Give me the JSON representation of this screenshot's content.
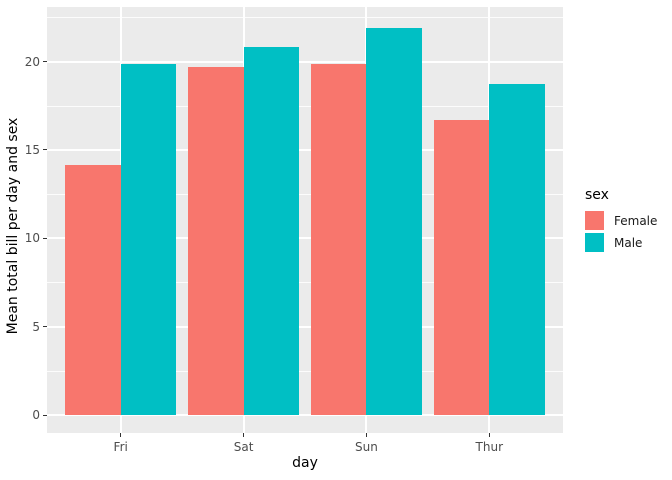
{
  "chart_data": {
    "type": "bar",
    "title": "",
    "categories": [
      "Fri",
      "Sat",
      "Sun",
      "Thur"
    ],
    "series": [
      {
        "name": "Female",
        "color": "#F8766D",
        "values": [
          14.15,
          19.68,
          19.87,
          16.72
        ]
      },
      {
        "name": "Male",
        "color": "#00BFC4",
        "values": [
          19.86,
          20.8,
          21.89,
          18.71
        ]
      }
    ],
    "xlabel": "day",
    "ylabel": "Mean total bill per day and sex",
    "yticks": [
      0,
      5,
      10,
      15,
      20
    ],
    "y_minor_ticks": [
      2.5,
      7.5,
      12.5,
      17.5,
      22.5
    ],
    "ylim": [
      -1.09,
      22.98
    ],
    "bar_mode": "grouped",
    "grid": "major and minor horizontal white lines, vertical white lines at category centers",
    "legend_position": "right-middle",
    "panel_background": "#EBEBEB",
    "gridline_color": "#FFFFFF",
    "tick_label_color": "#4D4D4D"
  },
  "axes": {
    "x_title": "day",
    "y_title": "Mean total bill per day and sex"
  },
  "legend": {
    "title": "sex",
    "items": [
      {
        "label": "Female",
        "color": "#F8766D"
      },
      {
        "label": "Male",
        "color": "#00BFC4"
      }
    ]
  }
}
